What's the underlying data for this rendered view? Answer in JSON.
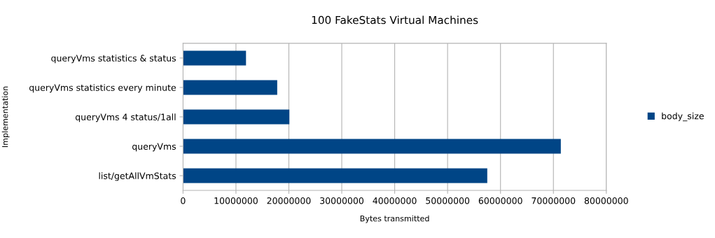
{
  "chart_data": {
    "type": "bar",
    "orientation": "horizontal",
    "title": "100 FakeStats Virtual Machines",
    "xlabel": "Bytes transmitted",
    "ylabel": "Implementation",
    "categories": [
      "queryVms statistics & status",
      "queryVms statistics every minute",
      "queryVms 4 status/1all",
      "queryVms",
      "list/getAllVmStats"
    ],
    "series": [
      {
        "name": "body_size",
        "color": "#004586",
        "values": [
          11900000,
          17800000,
          20100000,
          71400000,
          57500000
        ]
      }
    ],
    "xlim": [
      0,
      80000000
    ],
    "xticks": [
      0,
      10000000,
      20000000,
      30000000,
      40000000,
      50000000,
      60000000,
      70000000,
      80000000
    ],
    "grid": "x",
    "legend": "right"
  }
}
